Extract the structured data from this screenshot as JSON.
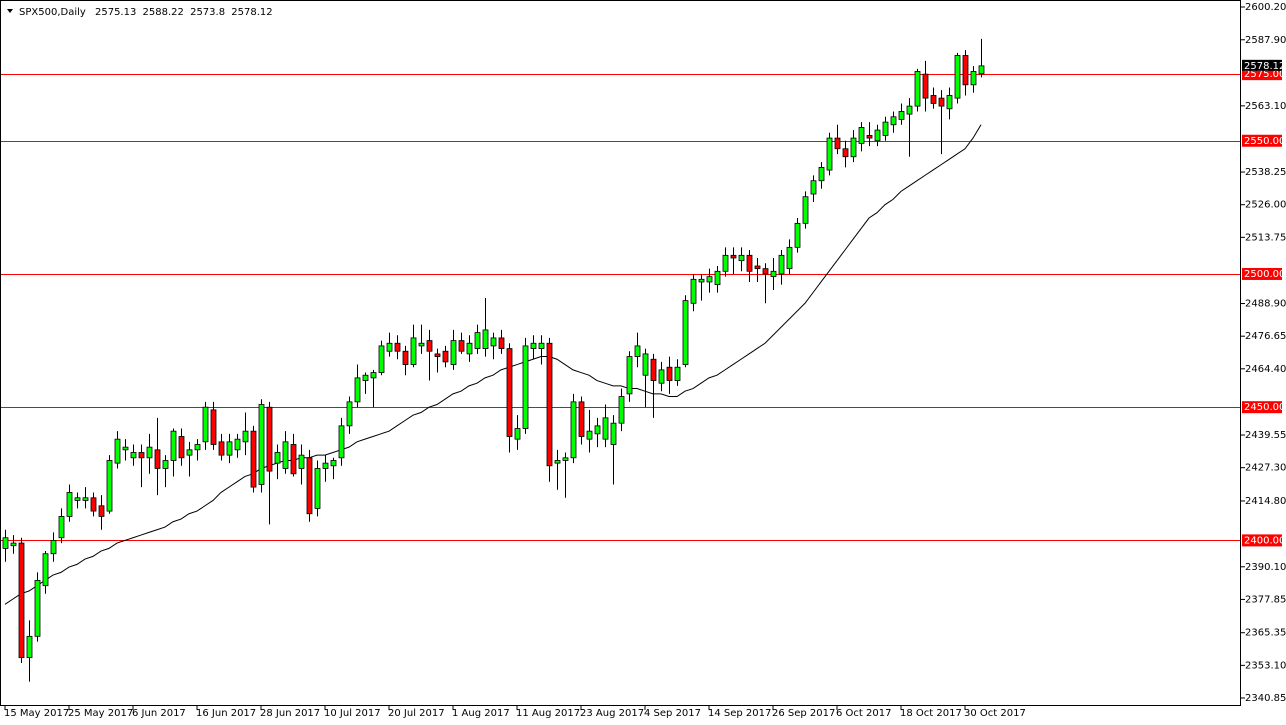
{
  "chart_data": {
    "type": "candlestick",
    "symbol": "SPX500,Daily",
    "categories": [
      "15 May 2017",
      null,
      null,
      null,
      null,
      null,
      null,
      null,
      "25 May 2017",
      null,
      null,
      null,
      null,
      null,
      null,
      null,
      "6 Jun 2017",
      null,
      null,
      null,
      null,
      null,
      null,
      null,
      "16 Jun 2017",
      null,
      null,
      null,
      null,
      null,
      null,
      null,
      "28 Jun 2017",
      null,
      null,
      null,
      null,
      null,
      null,
      null,
      "10 Jul 2017",
      null,
      null,
      null,
      null,
      null,
      null,
      null,
      "20 Jul 2017",
      null,
      null,
      null,
      null,
      null,
      null,
      null,
      "1 Aug 2017",
      null,
      null,
      null,
      null,
      null,
      null,
      null,
      "11 Aug 2017",
      null,
      null,
      null,
      null,
      null,
      null,
      null,
      "23 Aug 2017",
      null,
      null,
      null,
      null,
      null,
      null,
      null,
      "4 Sep 2017",
      null,
      null,
      null,
      null,
      null,
      null,
      null,
      "14 Sep 2017",
      null,
      null,
      null,
      null,
      null,
      null,
      null,
      "26 Sep 2017",
      null,
      null,
      null,
      null,
      null,
      null,
      null,
      "6 Oct 2017",
      null,
      null,
      null,
      null,
      null,
      null,
      null,
      "18 Oct 2017",
      null,
      null,
      null,
      null,
      null,
      null,
      null,
      "30 Oct 2017",
      null,
      null
    ],
    "open": [
      2397,
      2398,
      2399,
      2356,
      2364,
      2383,
      2395,
      2401,
      2409,
      2415,
      2415,
      2416,
      2413,
      2411,
      2429,
      2434,
      2431,
      2433,
      2431,
      2434,
      2427,
      2430,
      2439,
      2432,
      2434,
      2437,
      2449,
      2437,
      2432,
      2434,
      2437,
      2441,
      2421,
      2450,
      2429,
      2427,
      2436,
      2427,
      2431,
      2412,
      2427,
      2428,
      2431,
      2443,
      2452,
      2460,
      2461,
      2463,
      2471,
      2474,
      2471,
      2466,
      2473,
      2475,
      2470,
      2471,
      2466,
      2475,
      2470,
      2472,
      2472,
      2473,
      2476,
      2472,
      2438,
      2442,
      2472,
      2472,
      2474,
      2429,
      2430,
      2431,
      2452,
      2438,
      2440,
      2438,
      2436,
      2444,
      2455,
      2469,
      2462,
      2468,
      2459,
      2465,
      2460,
      2466,
      2489,
      2497,
      2497,
      2496,
      2501,
      2507,
      2505,
      2507,
      2503,
      2502,
      2499,
      2500,
      2502,
      2510,
      2519,
      2530,
      2535,
      2539,
      2551,
      2547,
      2544,
      2549,
      2552,
      2550,
      2552,
      2556,
      2558,
      2560,
      2563,
      2575,
      2567,
      2566,
      2562,
      2566,
      2582,
      2571,
      2575.13
    ],
    "high": [
      2404,
      2402,
      2401,
      2370,
      2388,
      2396,
      2403,
      2412,
      2421,
      2418,
      2420,
      2418,
      2417,
      2432,
      2441,
      2438,
      2436,
      2436,
      2440,
      2446,
      2432,
      2442,
      2442,
      2437,
      2438,
      2452,
      2452,
      2440,
      2440,
      2440,
      2448,
      2443,
      2453,
      2452,
      2436,
      2441,
      2440,
      2436,
      2434,
      2430,
      2432,
      2431,
      2446,
      2454,
      2466,
      2463,
      2464,
      2475,
      2478,
      2477,
      2473,
      2481,
      2481,
      2479,
      2472,
      2473,
      2479,
      2478,
      2477,
      2481,
      2491,
      2478,
      2479,
      2474,
      2447,
      2476,
      2477,
      2477,
      2476,
      2434,
      2433,
      2455,
      2454,
      2449,
      2446,
      2451,
      2447,
      2457,
      2471,
      2478,
      2472,
      2470,
      2467,
      2469,
      2468,
      2492,
      2500,
      2500,
      2502,
      2503,
      2510,
      2510,
      2510,
      2509,
      2506,
      2504,
      2506,
      2509,
      2513,
      2521,
      2531,
      2537,
      2542,
      2553,
      2556,
      2550,
      2554,
      2557,
      2557,
      2556,
      2559,
      2561,
      2564,
      2566,
      2577,
      2580,
      2570,
      2569,
      2570,
      2583,
      2584,
      2578,
      2588.22
    ],
    "low": [
      2392,
      2395,
      2354,
      2347,
      2362,
      2380,
      2392,
      2399,
      2407,
      2412,
      2412,
      2409,
      2404,
      2410,
      2427,
      2430,
      2428,
      2420,
      2425,
      2417,
      2420,
      2424,
      2428,
      2424,
      2430,
      2434,
      2434,
      2430,
      2429,
      2431,
      2432,
      2418,
      2418,
      2406,
      2423,
      2425,
      2424,
      2421,
      2407,
      2409,
      2422,
      2423,
      2428,
      2440,
      2450,
      2455,
      2450,
      2462,
      2469,
      2468,
      2462,
      2465,
      2470,
      2460,
      2463,
      2465,
      2464,
      2470,
      2467,
      2470,
      2469,
      2468,
      2470,
      2433,
      2434,
      2440,
      2468,
      2466,
      2422,
      2419,
      2416,
      2429,
      2436,
      2433,
      2435,
      2435,
      2421,
      2441,
      2452,
      2465,
      2450,
      2446,
      2456,
      2455,
      2458,
      2465,
      2486,
      2490,
      2493,
      2493,
      2499,
      2500,
      2501,
      2497,
      2497,
      2489,
      2494,
      2496,
      2500,
      2508,
      2517,
      2527,
      2532,
      2537,
      2545,
      2540,
      2542,
      2546,
      2548,
      2548,
      2550,
      2553,
      2556,
      2544,
      2561,
      2561,
      2562,
      2545,
      2558,
      2564,
      2567,
      2568,
      2573.8
    ],
    "close": [
      2401,
      2399,
      2356,
      2364,
      2385,
      2395,
      2400,
      2409,
      2418,
      2416,
      2416,
      2411,
      2409,
      2430,
      2438,
      2435,
      2433,
      2431,
      2435,
      2427,
      2430,
      2441,
      2431,
      2434,
      2436,
      2450,
      2436,
      2432,
      2437,
      2438,
      2441,
      2420,
      2451,
      2426,
      2433,
      2437,
      2425,
      2432,
      2410,
      2427,
      2429,
      2430,
      2443,
      2452,
      2461,
      2462,
      2463,
      2473,
      2474,
      2471,
      2466,
      2476,
      2474,
      2471,
      2469,
      2467,
      2475,
      2471,
      2474,
      2478,
      2479,
      2476,
      2472,
      2439,
      2442,
      2473,
      2474,
      2474,
      2428,
      2430,
      2431,
      2452,
      2439,
      2441,
      2443,
      2446,
      2444,
      2454,
      2469,
      2473,
      2470,
      2460,
      2464,
      2460,
      2465,
      2490,
      2498,
      2498,
      2499,
      2501,
      2507,
      2506,
      2507,
      2501,
      2502,
      2500,
      2501,
      2507,
      2510,
      2519,
      2529,
      2535,
      2540,
      2551,
      2547,
      2544,
      2551,
      2555,
      2551,
      2554,
      2557,
      2559,
      2561,
      2563,
      2576,
      2566,
      2564,
      2563,
      2567,
      2582,
      2571,
      2576,
      2578.12
    ],
    "up_color": "#00ff00",
    "down_color": "#ff0000",
    "ma": {
      "color": "#000000",
      "values": [
        2376,
        2378,
        2380,
        2381,
        2383,
        2385,
        2387,
        2388,
        2390,
        2391,
        2393,
        2394,
        2396,
        2397,
        2399,
        2400,
        2401,
        2402,
        2403,
        2404,
        2405,
        2407,
        2408,
        2410,
        2411,
        2413,
        2415,
        2418,
        2420,
        2422,
        2424,
        2425,
        2427,
        2428,
        2429,
        2430,
        2430,
        2431,
        2431,
        2432,
        2432,
        2433,
        2434,
        2435,
        2437,
        2438,
        2439,
        2440,
        2441,
        2443,
        2445,
        2447,
        2448,
        2450,
        2451,
        2453,
        2455,
        2456,
        2458,
        2459,
        2461,
        2462,
        2464,
        2465,
        2466,
        2467,
        2468,
        2469,
        2469,
        2468,
        2466,
        2464,
        2463,
        2462,
        2460,
        2459,
        2458,
        2458,
        2457,
        2457,
        2456,
        2455,
        2455,
        2454,
        2454,
        2456,
        2457,
        2459,
        2461,
        2462,
        2464,
        2466,
        2468,
        2470,
        2472,
        2474,
        2477,
        2480,
        2483,
        2486,
        2489,
        2493,
        2497,
        2501,
        2505,
        2509,
        2513,
        2517,
        2521,
        2523,
        2526,
        2528,
        2531,
        2533,
        2535,
        2537,
        2539,
        2541,
        2543,
        2545,
        2547,
        2551,
        2556
      ]
    },
    "levels": [
      {
        "value": 2575,
        "label": "2575.00"
      },
      {
        "value": 2550,
        "label": "2550.00"
      },
      {
        "value": 2500,
        "label": "2500.00"
      },
      {
        "value": 2450,
        "label": "2450.00"
      },
      {
        "value": 2400,
        "label": "2400.00"
      }
    ],
    "level_color": "#ff0000",
    "ylim": [
      2340.85,
      2600.2
    ],
    "yticks": [
      {
        "value": 2600.2,
        "label": "2600.20"
      },
      {
        "value": 2587.9,
        "label": "2587.90"
      },
      {
        "value": 2563.1,
        "label": "2563.10"
      },
      {
        "value": 2538.25,
        "label": "2538.25"
      },
      {
        "value": 2526,
        "label": "2526.00"
      },
      {
        "value": 2513.75,
        "label": "2513.75"
      },
      {
        "value": 2488.9,
        "label": "2488.90"
      },
      {
        "value": 2476.65,
        "label": "2476.65"
      },
      {
        "value": 2464.4,
        "label": "2464.40"
      },
      {
        "value": 2439.55,
        "label": "2439.55"
      },
      {
        "value": 2427.3,
        "label": "2427.30"
      },
      {
        "value": 2414.8,
        "label": "2414.80"
      },
      {
        "value": 2390.1,
        "label": "2390.10"
      },
      {
        "value": 2377.85,
        "label": "2377.85"
      },
      {
        "value": 2365.35,
        "label": "2365.35"
      },
      {
        "value": 2353.1,
        "label": "2353.10"
      },
      {
        "value": 2340.85,
        "label": "2340.85"
      }
    ],
    "grid": false
  }
}
